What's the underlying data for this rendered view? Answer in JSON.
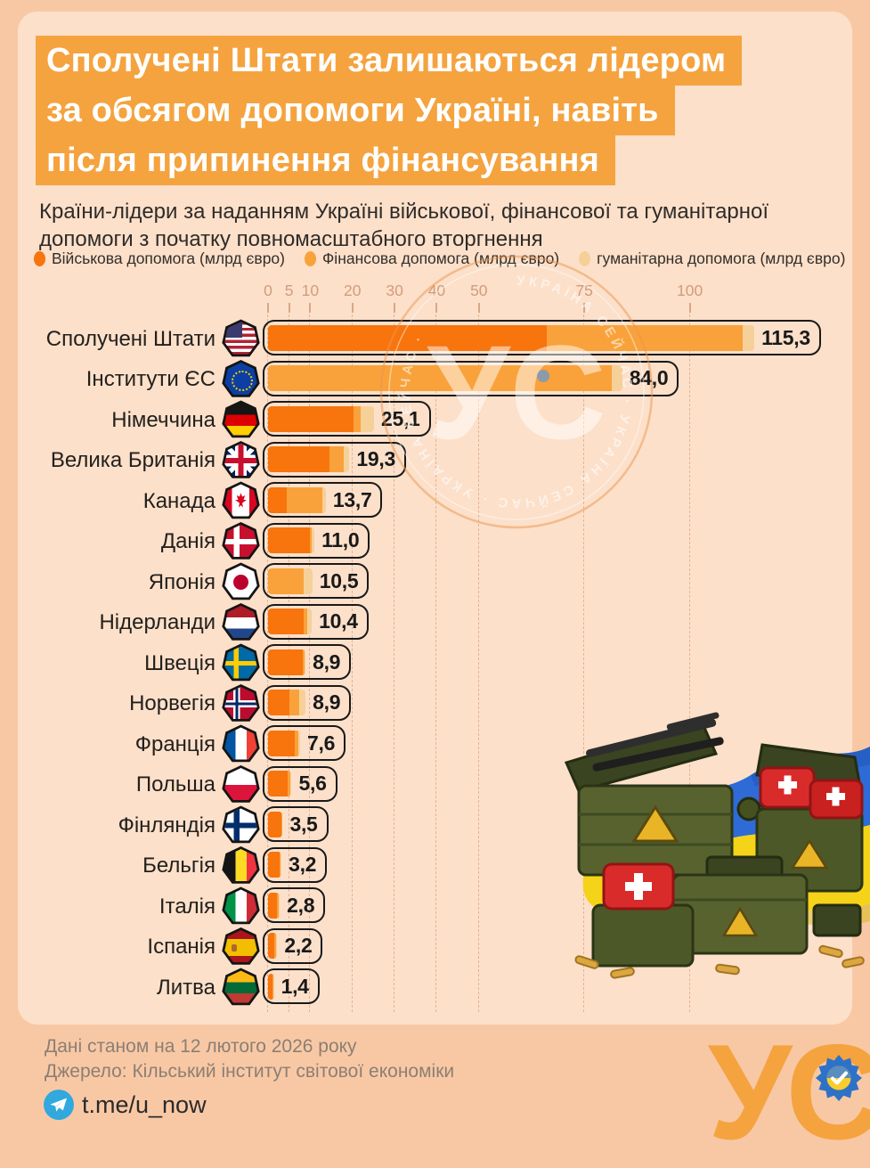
{
  "title": {
    "lines": [
      "Сполучені Штати залишаються лідером",
      "за обсягом допомоги Україні, навіть",
      "після припинення фінансування"
    ],
    "highlight_color": "#F5A33F"
  },
  "subtitle": "Країни-лідери за наданням Україні військової, фінансової та гуманітарної допомоги з початку повномасштабного вторгнення",
  "legend": {
    "items": [
      {
        "label": "Військова допомога (млрд євро)",
        "color": "#F8740D"
      },
      {
        "label": "Фінансова допомога (млрд євро)",
        "color": "#F9A23B"
      },
      {
        "label": "гуманітарна допомога (млрд євро)",
        "color": "#F6D099"
      }
    ]
  },
  "chart_data": {
    "type": "bar",
    "orientation": "horizontal",
    "stacked": true,
    "unit": "млрд євро",
    "x_ticks": [
      0,
      5,
      10,
      20,
      30,
      40,
      50,
      75,
      100
    ],
    "xlim": [
      0,
      120
    ],
    "grid": true,
    "series_names": [
      "Військова допомога",
      "Фінансова допомога",
      "гуманітарна допомога"
    ],
    "colors": {
      "military": "#F8740D",
      "financial": "#F9A23B",
      "humanitarian": "#F6D099"
    },
    "rows": [
      {
        "country": "Сполучені Штати",
        "flag": "usa",
        "total": 115.3,
        "label": "115,3",
        "military": 66.0,
        "financial": 46.5,
        "humanitarian": 2.8
      },
      {
        "country": "Інститути ЄС",
        "flag": "eu",
        "total": 84.0,
        "label": "84,0",
        "military": 0,
        "financial": 81.5,
        "humanitarian": 2.5
      },
      {
        "country": "Німеччина",
        "flag": "germany",
        "total": 25.1,
        "label": "25,1",
        "military": 20.2,
        "financial": 1.7,
        "humanitarian": 3.2
      },
      {
        "country": "Велика Британія",
        "flag": "uk",
        "total": 19.3,
        "label": "19,3",
        "military": 14.5,
        "financial": 3.4,
        "humanitarian": 1.4
      },
      {
        "country": "Канада",
        "flag": "canada",
        "total": 13.7,
        "label": "13,7",
        "military": 4.5,
        "financial": 8.3,
        "humanitarian": 0.9
      },
      {
        "country": "Данія",
        "flag": "denmark",
        "total": 11.0,
        "label": "11,0",
        "military": 9.9,
        "financial": 0.5,
        "humanitarian": 0.6
      },
      {
        "country": "Японія",
        "flag": "japan",
        "total": 10.5,
        "label": "10,5",
        "military": 0,
        "financial": 8.5,
        "humanitarian": 2.0
      },
      {
        "country": "Нідерланди",
        "flag": "netherlands",
        "total": 10.4,
        "label": "10,4",
        "military": 8.4,
        "financial": 1.0,
        "humanitarian": 1.0
      },
      {
        "country": "Швеція",
        "flag": "sweden",
        "total": 8.9,
        "label": "8,9",
        "military": 8.2,
        "financial": 0.4,
        "humanitarian": 0.3
      },
      {
        "country": "Норвегія",
        "flag": "norway",
        "total": 8.9,
        "label": "8,9",
        "military": 5.1,
        "financial": 2.2,
        "humanitarian": 1.6
      },
      {
        "country": "Франція",
        "flag": "france",
        "total": 7.6,
        "label": "7,6",
        "military": 6.4,
        "financial": 0.7,
        "humanitarian": 0.5
      },
      {
        "country": "Польша",
        "flag": "poland",
        "total": 5.6,
        "label": "5,6",
        "military": 4.6,
        "financial": 0.6,
        "humanitarian": 0.4
      },
      {
        "country": "Фінляндія",
        "flag": "finland",
        "total": 3.5,
        "label": "3,5",
        "military": 3.1,
        "financial": 0.2,
        "humanitarian": 0.2
      },
      {
        "country": "Бельгія",
        "flag": "belgium",
        "total": 3.2,
        "label": "3,2",
        "military": 2.7,
        "financial": 0.3,
        "humanitarian": 0.2
      },
      {
        "country": "Італія",
        "flag": "italy",
        "total": 2.8,
        "label": "2,8",
        "military": 2.2,
        "financial": 0.4,
        "humanitarian": 0.2
      },
      {
        "country": "Іспанія",
        "flag": "spain",
        "total": 2.2,
        "label": "2,2",
        "military": 1.5,
        "financial": 0.4,
        "humanitarian": 0.3
      },
      {
        "country": "Литва",
        "flag": "lithuania",
        "total": 1.4,
        "label": "1,4",
        "military": 1.1,
        "financial": 0.2,
        "humanitarian": 0.1
      }
    ]
  },
  "watermark": {
    "monogram": "УС",
    "ring_text": "УКРАЇНА СЕЙЧАС · УКРАЇНА СЕЙЧАС · УКРАЇНА СЕЙЧАС · "
  },
  "footer": {
    "data_note": "Дані станом на 12 лютого 2026 року",
    "source": "Джерело: Кільський інститут світової економіки",
    "telegram": "t.me/u_now",
    "logo": "УС"
  }
}
